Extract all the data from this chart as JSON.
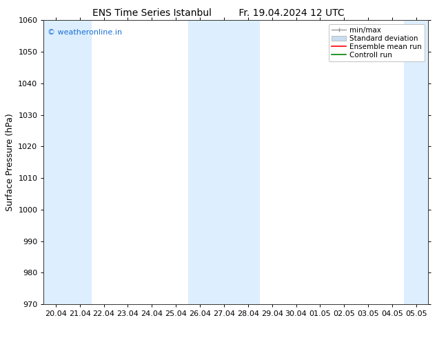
{
  "title_left": "ENS Time Series Istanbul",
  "title_right": "Fr. 19.04.2024 12 UTC",
  "ylabel": "Surface Pressure (hPa)",
  "ylim": [
    970,
    1060
  ],
  "yticks": [
    970,
    980,
    990,
    1000,
    1010,
    1020,
    1030,
    1040,
    1050,
    1060
  ],
  "x_labels": [
    "20.04",
    "21.04",
    "22.04",
    "23.04",
    "24.04",
    "25.04",
    "26.04",
    "27.04",
    "28.04",
    "29.04",
    "30.04",
    "01.05",
    "02.05",
    "03.05",
    "04.05",
    "05.05"
  ],
  "shaded_columns": [
    0,
    1,
    6,
    7,
    8,
    15
  ],
  "background_color": "#ffffff",
  "shading_color": "#ddeeff",
  "watermark_text": "© weatheronline.in",
  "watermark_color": "#1a6fd4",
  "legend_entries": [
    "min/max",
    "Standard deviation",
    "Ensemble mean run",
    "Controll run"
  ],
  "legend_line_colors": [
    "#aaaaaa",
    "#c8ddf0",
    "#ff0000",
    "#008000"
  ],
  "title_fontsize": 10,
  "ylabel_fontsize": 9,
  "tick_fontsize": 8,
  "watermark_fontsize": 8,
  "legend_fontsize": 7.5
}
